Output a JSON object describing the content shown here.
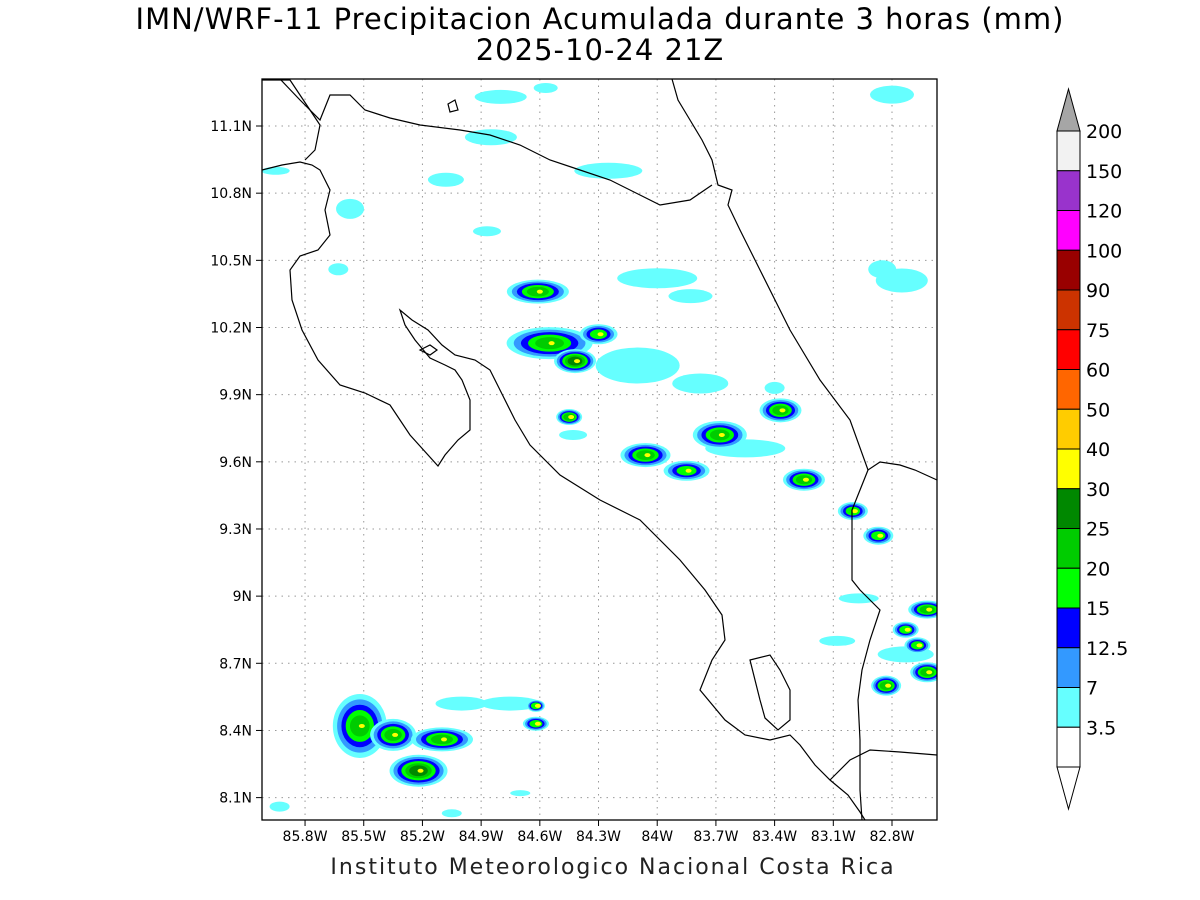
{
  "title": {
    "line1": "IMN/WRF-11 Precipitacion Acumulada durante 3 horas (mm)",
    "line2": "2025-10-24 21Z"
  },
  "footer": "Instituto Meteorologico Nacional Costa Rica",
  "map": {
    "lon_range": [
      -86.02,
      -82.57
    ],
    "lat_range": [
      8.0,
      11.31
    ],
    "lat_labels": [
      {
        "value": 11.1,
        "text": "11.1N"
      },
      {
        "value": 10.8,
        "text": "10.8N"
      },
      {
        "value": 10.5,
        "text": "10.5N"
      },
      {
        "value": 10.2,
        "text": "10.2N"
      },
      {
        "value": 9.9,
        "text": "9.9N"
      },
      {
        "value": 9.6,
        "text": "9.6N"
      },
      {
        "value": 9.3,
        "text": "9.3N"
      },
      {
        "value": 9.0,
        "text": "9N"
      },
      {
        "value": 8.7,
        "text": "8.7N"
      },
      {
        "value": 8.4,
        "text": "8.4N"
      },
      {
        "value": 8.1,
        "text": "8.1N"
      }
    ],
    "lon_labels": [
      {
        "value": -85.8,
        "text": "85.8W"
      },
      {
        "value": -85.5,
        "text": "85.5W"
      },
      {
        "value": -85.2,
        "text": "85.2W"
      },
      {
        "value": -84.9,
        "text": "84.9W"
      },
      {
        "value": -84.6,
        "text": "84.6W"
      },
      {
        "value": -84.3,
        "text": "84.3W"
      },
      {
        "value": -84.0,
        "text": "84W"
      },
      {
        "value": -83.7,
        "text": "83.7W"
      },
      {
        "value": -83.4,
        "text": "83.4W"
      },
      {
        "value": -83.1,
        "text": "83.1W"
      },
      {
        "value": -82.8,
        "text": "82.8W"
      }
    ],
    "grid": true,
    "grid_style": "dotted"
  },
  "colorbar": {
    "units": "mm",
    "levels": [
      {
        "label": "3.5",
        "color": "#ffffff"
      },
      {
        "label": "7",
        "color": "#66ffff"
      },
      {
        "label": "12.5",
        "color": "#3399ff"
      },
      {
        "label": "15",
        "color": "#0000ff"
      },
      {
        "label": "20",
        "color": "#00ff00"
      },
      {
        "label": "25",
        "color": "#00cc00"
      },
      {
        "label": "30",
        "color": "#008800"
      },
      {
        "label": "40",
        "color": "#ffff00"
      },
      {
        "label": "50",
        "color": "#ffcc00"
      },
      {
        "label": "60",
        "color": "#ff6600"
      },
      {
        "label": "75",
        "color": "#ff0000"
      },
      {
        "label": "90",
        "color": "#cc3300"
      },
      {
        "label": "100",
        "color": "#990000"
      },
      {
        "label": "120",
        "color": "#ff00ff"
      },
      {
        "label": "150",
        "color": "#9933cc"
      },
      {
        "label": "200",
        "color": "#f2f2f2"
      }
    ],
    "over_color": "#a6a6a6"
  },
  "precip_cells": [
    {
      "lon": -84.61,
      "lat": 10.36,
      "rx": 28,
      "ry": 10,
      "level": 5
    },
    {
      "lon": -84.55,
      "lat": 10.13,
      "rx": 40,
      "ry": 14,
      "level": 5
    },
    {
      "lon": -84.42,
      "lat": 10.05,
      "rx": 18,
      "ry": 10,
      "level": 6
    },
    {
      "lon": -84.45,
      "lat": 9.8,
      "rx": 10,
      "ry": 6,
      "level": 5
    },
    {
      "lon": -84.06,
      "lat": 9.63,
      "rx": 22,
      "ry": 10,
      "level": 5
    },
    {
      "lon": -83.85,
      "lat": 9.56,
      "rx": 20,
      "ry": 8,
      "level": 4
    },
    {
      "lon": -83.68,
      "lat": 9.72,
      "rx": 24,
      "ry": 12,
      "level": 5
    },
    {
      "lon": -83.37,
      "lat": 9.83,
      "rx": 18,
      "ry": 10,
      "level": 5
    },
    {
      "lon": -83.25,
      "lat": 9.52,
      "rx": 18,
      "ry": 9,
      "level": 5
    },
    {
      "lon": -83.0,
      "lat": 9.38,
      "rx": 12,
      "ry": 7,
      "level": 4
    },
    {
      "lon": -82.87,
      "lat": 9.27,
      "rx": 12,
      "ry": 7,
      "level": 4
    },
    {
      "lon": -82.62,
      "lat": 8.94,
      "rx": 16,
      "ry": 7,
      "level": 5
    },
    {
      "lon": -82.73,
      "lat": 8.85,
      "rx": 10,
      "ry": 6,
      "level": 4
    },
    {
      "lon": -82.67,
      "lat": 8.78,
      "rx": 10,
      "ry": 6,
      "level": 4
    },
    {
      "lon": -82.62,
      "lat": 8.66,
      "rx": 14,
      "ry": 8,
      "level": 5
    },
    {
      "lon": -82.83,
      "lat": 8.6,
      "rx": 12,
      "ry": 8,
      "level": 5
    },
    {
      "lon": -85.52,
      "lat": 8.42,
      "rx": 24,
      "ry": 30,
      "level": 5
    },
    {
      "lon": -85.35,
      "lat": 8.38,
      "rx": 20,
      "ry": 14,
      "level": 5
    },
    {
      "lon": -85.22,
      "lat": 8.22,
      "rx": 26,
      "ry": 14,
      "level": 6
    },
    {
      "lon": -85.1,
      "lat": 8.36,
      "rx": 28,
      "ry": 10,
      "level": 5
    },
    {
      "lon": -84.62,
      "lat": 8.43,
      "rx": 10,
      "ry": 5,
      "level": 4
    },
    {
      "lon": -84.62,
      "lat": 8.51,
      "rx": 6,
      "ry": 4,
      "level": 4
    },
    {
      "lon": -84.3,
      "lat": 10.17,
      "rx": 16,
      "ry": 8,
      "level": 4
    }
  ],
  "light_cells": [
    {
      "lon": -84.8,
      "lat": 11.23,
      "rx": 26,
      "ry": 7
    },
    {
      "lon": -84.57,
      "lat": 11.27,
      "rx": 12,
      "ry": 5
    },
    {
      "lon": -84.25,
      "lat": 10.9,
      "rx": 34,
      "ry": 8
    },
    {
      "lon": -84.85,
      "lat": 11.05,
      "rx": 26,
      "ry": 8
    },
    {
      "lon": -85.08,
      "lat": 10.86,
      "rx": 18,
      "ry": 7
    },
    {
      "lon": -82.8,
      "lat": 11.24,
      "rx": 22,
      "ry": 9
    },
    {
      "lon": -84.0,
      "lat": 10.42,
      "rx": 40,
      "ry": 10
    },
    {
      "lon": -83.83,
      "lat": 10.34,
      "rx": 22,
      "ry": 7
    },
    {
      "lon": -82.75,
      "lat": 10.41,
      "rx": 26,
      "ry": 12
    },
    {
      "lon": -82.85,
      "lat": 10.46,
      "rx": 14,
      "ry": 9
    },
    {
      "lon": -85.57,
      "lat": 10.73,
      "rx": 14,
      "ry": 10
    },
    {
      "lon": -85.63,
      "lat": 10.46,
      "rx": 10,
      "ry": 6
    },
    {
      "lon": -84.87,
      "lat": 10.63,
      "rx": 14,
      "ry": 5
    },
    {
      "lon": -84.1,
      "lat": 10.03,
      "rx": 42,
      "ry": 18
    },
    {
      "lon": -83.78,
      "lat": 9.95,
      "rx": 28,
      "ry": 10
    },
    {
      "lon": -83.55,
      "lat": 9.66,
      "rx": 40,
      "ry": 9
    },
    {
      "lon": -83.4,
      "lat": 9.93,
      "rx": 10,
      "ry": 6
    },
    {
      "lon": -82.97,
      "lat": 8.99,
      "rx": 20,
      "ry": 5
    },
    {
      "lon": -83.08,
      "lat": 8.8,
      "rx": 18,
      "ry": 5
    },
    {
      "lon": -82.73,
      "lat": 8.74,
      "rx": 28,
      "ry": 8
    },
    {
      "lon": -84.75,
      "lat": 8.52,
      "rx": 30,
      "ry": 7
    },
    {
      "lon": -85.0,
      "lat": 8.52,
      "rx": 26,
      "ry": 7
    },
    {
      "lon": -85.95,
      "lat": 10.9,
      "rx": 14,
      "ry": 4
    },
    {
      "lon": -85.93,
      "lat": 8.06,
      "rx": 10,
      "ry": 5
    },
    {
      "lon": -85.05,
      "lat": 8.03,
      "rx": 10,
      "ry": 4
    },
    {
      "lon": -84.7,
      "lat": 8.12,
      "rx": 10,
      "ry": 3
    },
    {
      "lon": -84.43,
      "lat": 9.72,
      "rx": 14,
      "ry": 5
    }
  ]
}
